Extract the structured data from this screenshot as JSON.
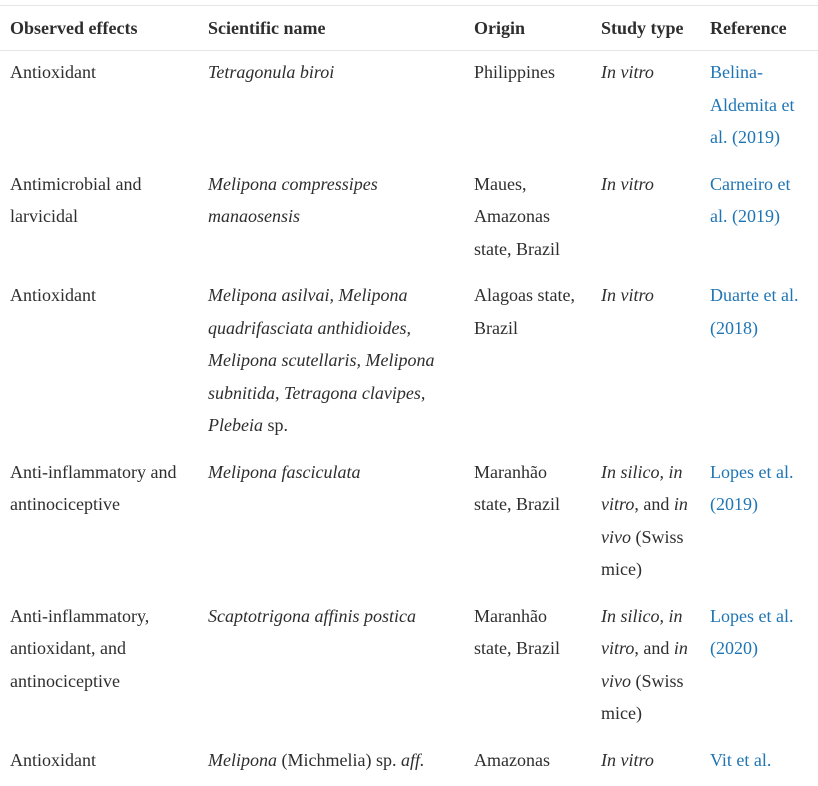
{
  "table": {
    "header": [
      "Observed effects",
      "Scientific name",
      "Origin",
      "Study type",
      "Reference"
    ],
    "rows": [
      [
        [
          {
            "text": "Antioxidant"
          }
        ],
        [
          {
            "text": "Tetragonula biroi",
            "italic": true
          }
        ],
        [
          {
            "text": "Philippines"
          }
        ],
        [
          {
            "text": "In vitro",
            "italic": true
          }
        ],
        [
          {
            "text": "Belina-Aldemita et al. (2019)",
            "link": true
          }
        ]
      ],
      [
        [
          {
            "text": "Antimicrobial and larvicidal"
          }
        ],
        [
          {
            "text": "Melipona compressipes manaosensis",
            "italic": true
          }
        ],
        [
          {
            "text": "Maues, Amazonas state, Brazil"
          }
        ],
        [
          {
            "text": "In vitro",
            "italic": true
          }
        ],
        [
          {
            "text": "Carneiro et al. (2019)",
            "link": true
          }
        ]
      ],
      [
        [
          {
            "text": "Antioxidant"
          }
        ],
        [
          {
            "text": "Melipona asilvai, Melipona quadrifasciata anthidioides, Melipona scutellaris, Melipona subnitida, Tetragona clavipes, Plebeia",
            "italic": true
          },
          {
            "text": " sp."
          }
        ],
        [
          {
            "text": "Alagoas state, Brazil"
          }
        ],
        [
          {
            "text": "In vitro",
            "italic": true
          }
        ],
        [
          {
            "text": "Duarte et al. (2018)",
            "link": true
          }
        ]
      ],
      [
        [
          {
            "text": "Anti-inflammatory and antinociceptive"
          }
        ],
        [
          {
            "text": "Melipona fasciculata",
            "italic": true
          }
        ],
        [
          {
            "text": "Maranhão state, Brazil"
          }
        ],
        [
          {
            "text": "In silico, in vitro",
            "italic": true
          },
          {
            "text": ", and "
          },
          {
            "text": "in vivo",
            "italic": true
          },
          {
            "text": " (Swiss mice)"
          }
        ],
        [
          {
            "text": "Lopes et al. (2019)",
            "link": true
          }
        ]
      ],
      [
        [
          {
            "text": "Anti-inflammatory, antioxidant, and antinociceptive"
          }
        ],
        [
          {
            "text": "Scaptotrigona affinis postica",
            "italic": true
          }
        ],
        [
          {
            "text": "Maranhão state, Brazil"
          }
        ],
        [
          {
            "text": "In silico, in vitro",
            "italic": true
          },
          {
            "text": ", and "
          },
          {
            "text": "in vivo",
            "italic": true
          },
          {
            "text": " (Swiss mice)"
          }
        ],
        [
          {
            "text": "Lopes et al. (2020)",
            "link": true
          }
        ]
      ],
      [
        [
          {
            "text": "Antioxidant"
          }
        ],
        [
          {
            "text": "Melipona",
            "italic": true
          },
          {
            "text": " (Michmelia) sp. "
          },
          {
            "text": "aff.",
            "italic": true
          }
        ],
        [
          {
            "text": "Amazonas"
          }
        ],
        [
          {
            "text": "In vitro",
            "italic": true
          }
        ],
        [
          {
            "text": "Vit et al.",
            "link": true
          }
        ]
      ]
    ]
  }
}
